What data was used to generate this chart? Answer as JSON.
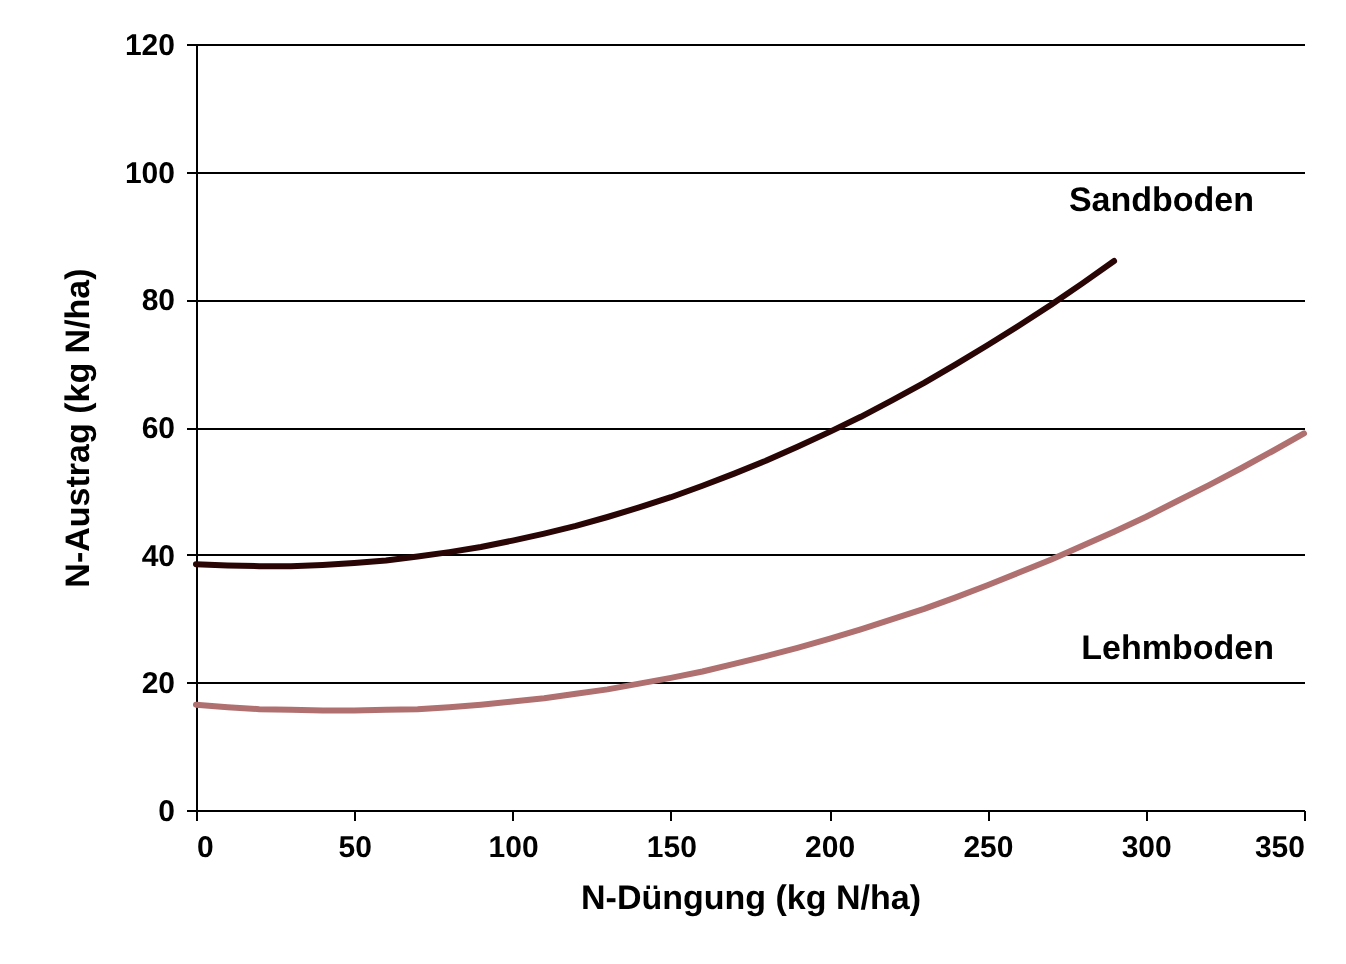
{
  "chart_data": {
    "type": "line",
    "xlabel": "N-Düngung (kg N/ha)",
    "ylabel": "N-Austrag (kg N/ha)",
    "xlim": [
      0,
      350
    ],
    "xticks": [
      0,
      50,
      100,
      150,
      200,
      250,
      300,
      350
    ],
    "ylim": [
      0,
      120
    ],
    "yticks": [
      0,
      20,
      40,
      60,
      80,
      100,
      120
    ],
    "grid": "y",
    "marker": "none",
    "line_style": "solid",
    "series": [
      {
        "name": "Sandboden",
        "color": "#2a0505",
        "x": [
          0,
          10,
          20,
          30,
          40,
          50,
          60,
          70,
          80,
          90,
          100,
          110,
          120,
          130,
          140,
          150,
          160,
          170,
          180,
          190,
          200,
          210,
          220,
          230,
          240,
          250,
          260,
          270,
          280,
          290
        ],
        "values": [
          38.5,
          38.3,
          38.2,
          38.2,
          38.4,
          38.7,
          39.1,
          39.7,
          40.4,
          41.2,
          42.2,
          43.3,
          44.5,
          45.9,
          47.4,
          49.0,
          50.8,
          52.7,
          54.7,
          56.9,
          59.2,
          61.6,
          64.2,
          66.9,
          69.8,
          72.8,
          75.9,
          79.1,
          82.5,
          86.0
        ]
      },
      {
        "name": "Lehmboden",
        "color": "#b07070",
        "x": [
          0,
          10,
          20,
          30,
          40,
          50,
          60,
          70,
          80,
          90,
          100,
          110,
          120,
          130,
          140,
          150,
          160,
          170,
          180,
          190,
          200,
          210,
          220,
          230,
          240,
          250,
          260,
          270,
          280,
          290,
          300,
          310,
          320,
          330,
          340,
          350
        ],
        "values": [
          16.5,
          16.1,
          15.8,
          15.7,
          15.6,
          15.6,
          15.7,
          15.8,
          16.1,
          16.5,
          17.0,
          17.5,
          18.2,
          18.9,
          19.8,
          20.7,
          21.7,
          22.9,
          24.1,
          25.4,
          26.8,
          28.3,
          29.9,
          31.5,
          33.3,
          35.2,
          37.2,
          39.2,
          41.4,
          43.6,
          45.9,
          48.4,
          50.9,
          53.5,
          56.2,
          59.0
        ]
      }
    ]
  }
}
